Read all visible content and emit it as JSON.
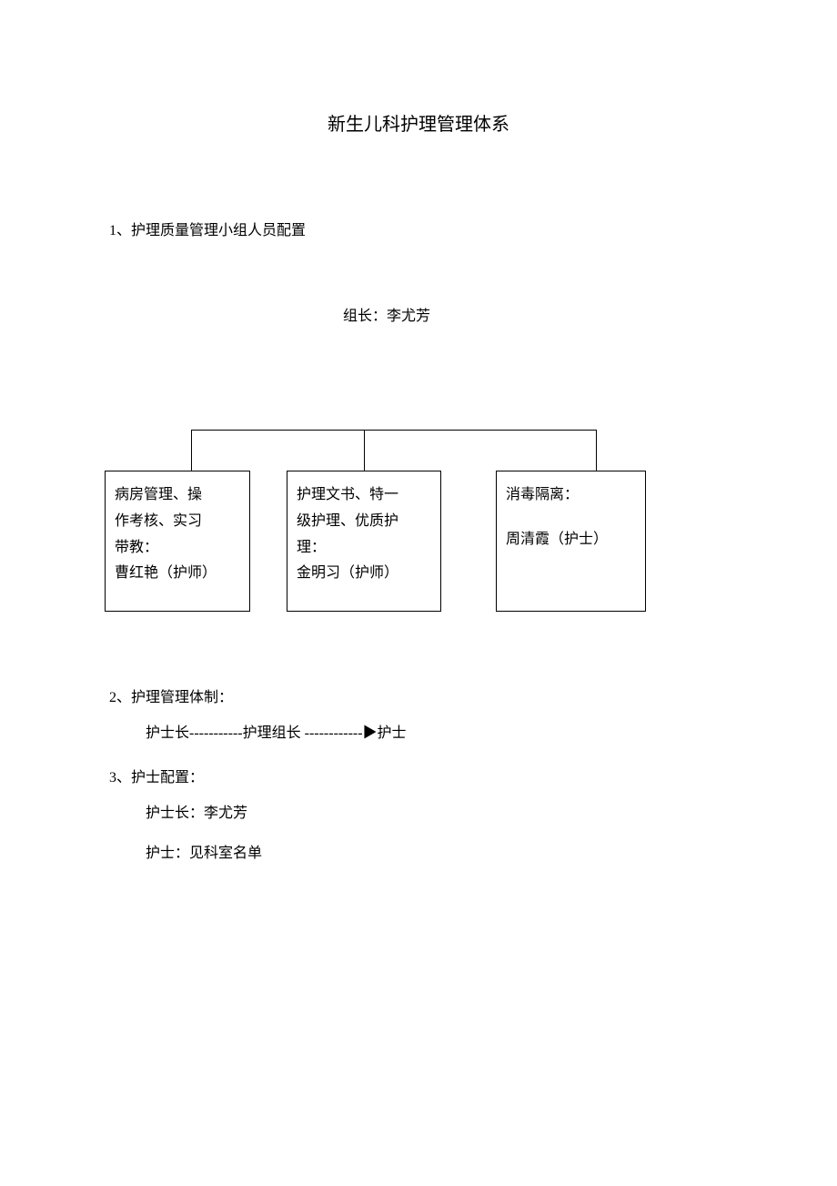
{
  "title": "新生儿科护理管理体系",
  "section1": {
    "heading": "1、护理质量管理小组人员配置",
    "leader": "组长：李尤芳",
    "boxes": {
      "box1": {
        "line1": "病房管理、操",
        "line2": "作考核、实习",
        "line3": "带教：",
        "line4": "曹红艳（护师）"
      },
      "box2": {
        "line1": "护理文书、特一",
        "line2": "级护理、优质护",
        "line3": "理：",
        "line4": "金明习（护师）"
      },
      "box3": {
        "line1": "消毒隔离：",
        "line2": "周清霞（护士）"
      }
    }
  },
  "section2": {
    "heading": "2、护理管理体制：",
    "hierarchy": "护士长-----------护理组长 ------------▶护士"
  },
  "section3": {
    "heading": "3、护士配置：",
    "head_nurse": "护士长：李尤芳",
    "nurse": "护士：见科室名单"
  }
}
